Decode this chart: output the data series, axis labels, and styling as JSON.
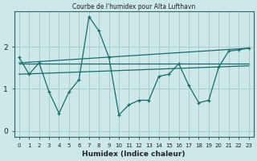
{
  "title": "Courbe de l'humidex pour Alta Lufthavn",
  "xlabel": "Humidex (Indice chaleur)",
  "background_color": "#cce8e8",
  "grid_color": "#aacccc",
  "line_color": "#1a6b6b",
  "x_ticks": [
    0,
    1,
    2,
    3,
    4,
    5,
    6,
    7,
    8,
    9,
    10,
    11,
    12,
    13,
    14,
    15,
    16,
    17,
    18,
    19,
    20,
    21,
    22,
    23
  ],
  "y_ticks": [
    0,
    1,
    2
  ],
  "ylim": [
    -0.15,
    2.85
  ],
  "xlim": [
    -0.5,
    23.5
  ],
  "series1": [
    1.75,
    1.35,
    1.62,
    0.93,
    0.42,
    0.93,
    1.22,
    2.72,
    2.38,
    1.75,
    0.38,
    0.62,
    0.73,
    0.73,
    1.3,
    1.35,
    1.6,
    1.08,
    0.67,
    0.73,
    1.52,
    1.9,
    1.93,
    1.97
  ],
  "series2_x": [
    0,
    23
  ],
  "series2_y": [
    1.6,
    1.6
  ],
  "series3_x": [
    0,
    23
  ],
  "series3_y": [
    1.62,
    1.97
  ],
  "series4_x": [
    0,
    23
  ],
  "series4_y": [
    1.35,
    1.55
  ]
}
